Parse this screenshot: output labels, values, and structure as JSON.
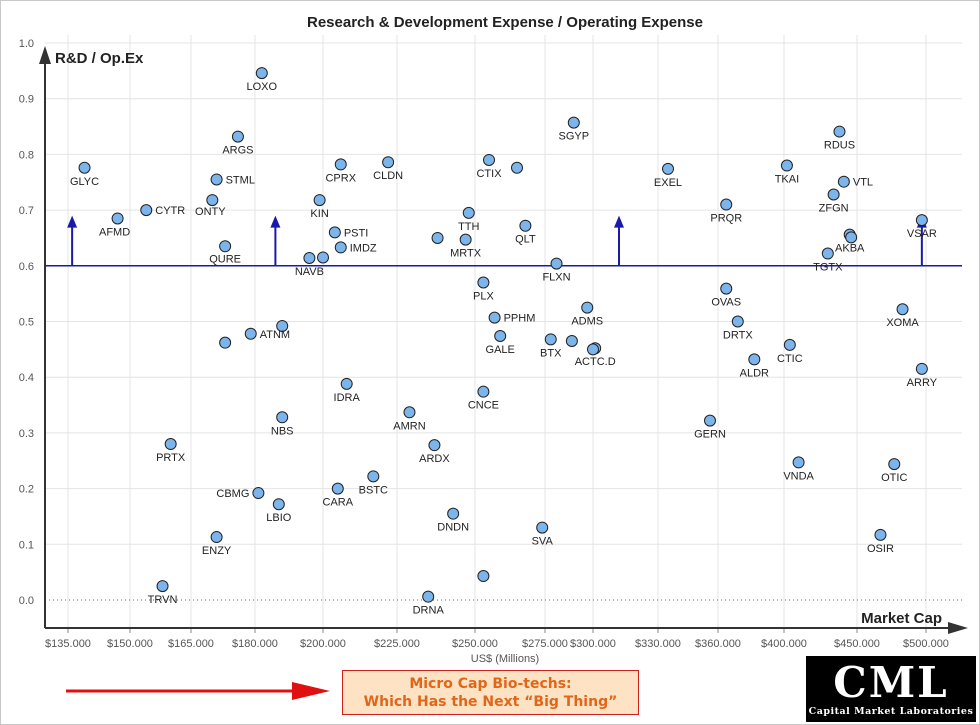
{
  "chart_data": {
    "type": "scatter",
    "title": "Research & Development Expense / Operating Expense",
    "ylabel": "R&D / Op.Ex",
    "xlabel": "Market Cap",
    "x_unit_label": "US$ (Millions)",
    "xlim": [
      130,
      510
    ],
    "ylim": [
      -0.05,
      1.0
    ],
    "x_ticks": [
      135,
      150,
      165,
      180,
      200,
      225,
      250,
      275,
      300,
      330,
      360,
      400,
      450,
      500
    ],
    "x_tick_labels": [
      "$135.000",
      "$150.000",
      "$165.000",
      "$180.000",
      "$200.000",
      "$225.000",
      "$250.000",
      "$275.000",
      "$300.000",
      "$330.000",
      "$360.000",
      "$400.000",
      "$450.000",
      "$500.000"
    ],
    "y_ticks": [
      0.0,
      0.1,
      0.2,
      0.3,
      0.4,
      0.5,
      0.6,
      0.7,
      0.8,
      0.9,
      1.0
    ],
    "y_tick_labels": [
      "0.0",
      "0.1",
      "0.2",
      "0.3",
      "0.4",
      "0.5",
      "0.6",
      "0.7",
      "0.8",
      "0.9",
      "1.0"
    ],
    "threshold": 0.6,
    "threshold_arrows_x": [
      136,
      186,
      312,
      497
    ],
    "threshold_arrow_top": 0.69,
    "grid": true,
    "marker_color": "#7cb5ec",
    "threshold_color": "#1a1aaa",
    "points": [
      {
        "label": "LOXO",
        "x": 182,
        "y": 0.946
      },
      {
        "label": "SGYP",
        "x": 290,
        "y": 0.857
      },
      {
        "label": "RDUS",
        "x": 438,
        "y": 0.841
      },
      {
        "label": "ARGS",
        "x": 176,
        "y": 0.832
      },
      {
        "label": "CTIX",
        "x": 255,
        "y": 0.79
      },
      {
        "label": "CLDN",
        "x": 222,
        "y": 0.786
      },
      {
        "label": "CPRX",
        "x": 206,
        "y": 0.782
      },
      {
        "label": "GLYC",
        "x": 139,
        "y": 0.776
      },
      {
        "label": "",
        "x": 265,
        "y": 0.776
      },
      {
        "label": "EXEL",
        "x": 335,
        "y": 0.774
      },
      {
        "label": "TKAI",
        "x": 402,
        "y": 0.78
      },
      {
        "label": "STML",
        "x": 171,
        "y": 0.755
      },
      {
        "label": "VTL",
        "x": 441,
        "y": 0.751
      },
      {
        "label": "ZFGN",
        "x": 434,
        "y": 0.728
      },
      {
        "label": "ONTY",
        "x": 170,
        "y": 0.718
      },
      {
        "label": "KIN",
        "x": 199,
        "y": 0.718
      },
      {
        "label": "PRQR",
        "x": 365,
        "y": 0.71
      },
      {
        "label": "CYTR",
        "x": 154,
        "y": 0.7
      },
      {
        "label": "TTH",
        "x": 248,
        "y": 0.695
      },
      {
        "label": "AFMD",
        "x": 147,
        "y": 0.685
      },
      {
        "label": "VSAR",
        "x": 497,
        "y": 0.682
      },
      {
        "label": "QLT",
        "x": 268,
        "y": 0.672
      },
      {
        "label": "PSTI",
        "x": 204,
        "y": 0.66
      },
      {
        "label": "AKBA",
        "x": 445,
        "y": 0.656
      },
      {
        "label": "",
        "x": 446,
        "y": 0.651
      },
      {
        "label": "",
        "x": 238,
        "y": 0.65
      },
      {
        "label": "MRTX",
        "x": 247,
        "y": 0.647
      },
      {
        "label": "IMDZ",
        "x": 206,
        "y": 0.633
      },
      {
        "label": "QURE",
        "x": 173,
        "y": 0.635
      },
      {
        "label": "TGTX",
        "x": 430,
        "y": 0.622
      },
      {
        "label": "NAVB",
        "x": 196,
        "y": 0.614
      },
      {
        "label": "",
        "x": 200,
        "y": 0.615
      },
      {
        "label": "FLXN",
        "x": 281,
        "y": 0.604
      },
      {
        "label": "PLX",
        "x": 253,
        "y": 0.57
      },
      {
        "label": "OVAS",
        "x": 365,
        "y": 0.559
      },
      {
        "label": "ADMS",
        "x": 297,
        "y": 0.525
      },
      {
        "label": "XOMA",
        "x": 483,
        "y": 0.522
      },
      {
        "label": "PPHM",
        "x": 257,
        "y": 0.507
      },
      {
        "label": "DRTX",
        "x": 372,
        "y": 0.5
      },
      {
        "label": "",
        "x": 188,
        "y": 0.492
      },
      {
        "label": "ATNM",
        "x": 179,
        "y": 0.478
      },
      {
        "label": "GALE",
        "x": 259,
        "y": 0.474
      },
      {
        "label": "BTX",
        "x": 278,
        "y": 0.468
      },
      {
        "label": "",
        "x": 289,
        "y": 0.465
      },
      {
        "label": "",
        "x": 173,
        "y": 0.462
      },
      {
        "label": "ACTC.D",
        "x": 301,
        "y": 0.452
      },
      {
        "label": "",
        "x": 300,
        "y": 0.45
      },
      {
        "label": "CTIC",
        "x": 404,
        "y": 0.458
      },
      {
        "label": "ALDR",
        "x": 382,
        "y": 0.432
      },
      {
        "label": "ARRY",
        "x": 497,
        "y": 0.415
      },
      {
        "label": "IDRA",
        "x": 208,
        "y": 0.388
      },
      {
        "label": "CNCE",
        "x": 253,
        "y": 0.374
      },
      {
        "label": "AMRN",
        "x": 229,
        "y": 0.337
      },
      {
        "label": "NBS",
        "x": 188,
        "y": 0.328
      },
      {
        "label": "GERN",
        "x": 356,
        "y": 0.322
      },
      {
        "label": "PRTX",
        "x": 160,
        "y": 0.28
      },
      {
        "label": "ARDX",
        "x": 237,
        "y": 0.278
      },
      {
        "label": "VNDA",
        "x": 410,
        "y": 0.247
      },
      {
        "label": "OTIC",
        "x": 477,
        "y": 0.244
      },
      {
        "label": "BSTC",
        "x": 217,
        "y": 0.222
      },
      {
        "label": "CARA",
        "x": 205,
        "y": 0.2
      },
      {
        "label": "CBMG",
        "x": 181,
        "y": 0.192
      },
      {
        "label": "LBIO",
        "x": 187,
        "y": 0.172
      },
      {
        "label": "DNDN",
        "x": 243,
        "y": 0.155
      },
      {
        "label": "SVA",
        "x": 274,
        "y": 0.13
      },
      {
        "label": "OSIR",
        "x": 467,
        "y": 0.117
      },
      {
        "label": "ENZY",
        "x": 171,
        "y": 0.113
      },
      {
        "label": "",
        "x": 253,
        "y": 0.043
      },
      {
        "label": "TRVN",
        "x": 158,
        "y": 0.025
      },
      {
        "label": "DRNA",
        "x": 235,
        "y": 0.006
      }
    ]
  },
  "callout": {
    "line1": "Micro Cap Bio-techs:",
    "line2": "Which Has the Next “Big Thing”"
  },
  "logo": {
    "mark": "CML",
    "subtitle": "Capital Market Laboratories"
  },
  "callout_arrow_color": "#e01010"
}
